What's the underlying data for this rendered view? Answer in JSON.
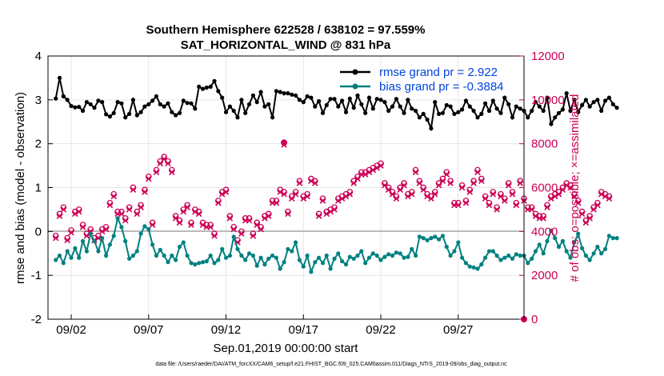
{
  "chart_data": {
    "type": "line",
    "title": "Southern Hemisphere 622528 / 638102 = 97.559%",
    "subtitle": "SAT_HORIZONTAL_WIND @ 831 hPa",
    "xlabel": "Sep.01,2019 00:00:00 start",
    "ylabel": "rmse and bias (model - observation)",
    "y2label": "# of obs: o=possible; ×=assimilated",
    "xlim": [
      0.5,
      31.25
    ],
    "ylim": [
      -2,
      4
    ],
    "y2lim": [
      0,
      12000
    ],
    "xticks": [
      {
        "x": 2,
        "label": "09/02"
      },
      {
        "x": 7,
        "label": "09/07"
      },
      {
        "x": 12,
        "label": "09/12"
      },
      {
        "x": 17,
        "label": "09/17"
      },
      {
        "x": 22,
        "label": "09/22"
      },
      {
        "x": 27,
        "label": "09/27"
      }
    ],
    "yticks": [
      "-2",
      "-1",
      "0",
      "1",
      "2",
      "3",
      "4"
    ],
    "y2ticks": [
      "0",
      "2000",
      "4000",
      "6000",
      "8000",
      "10000",
      "12000"
    ],
    "legend": [
      {
        "label": "rmse grand pr = 2.922",
        "color": "#000000"
      },
      {
        "label": "bias grand pr = -0.3884",
        "color": "#008080"
      }
    ],
    "footer": "data file: /Users/raeder/DAI/ATM_forcXX/CAM6_setup/f.e21.FHIST_BGC.f09_025.CAM6assim.011/Diags_NTrS_2019-09/obs_diag_output.nc",
    "x_start": 1.0,
    "x_step": 0.25,
    "series": [
      {
        "name": "rmse",
        "color": "#000000",
        "values": [
          3.03,
          3.5,
          3.08,
          3.0,
          2.86,
          2.83,
          2.84,
          2.75,
          2.95,
          2.9,
          2.82,
          2.98,
          2.95,
          2.67,
          2.62,
          2.7,
          2.95,
          2.92,
          2.6,
          2.68,
          3.0,
          2.65,
          2.72,
          2.85,
          2.9,
          2.98,
          3.08,
          2.9,
          2.85,
          2.92,
          2.72,
          2.65,
          2.7,
          2.98,
          2.93,
          2.92,
          2.8,
          3.3,
          3.25,
          3.28,
          3.3,
          3.43,
          3.2,
          3.05,
          2.72,
          2.85,
          2.75,
          2.6,
          3.0,
          2.7,
          2.9,
          3.1,
          2.95,
          3.18,
          2.85,
          2.9,
          2.6,
          3.2,
          3.18,
          3.15,
          3.15,
          3.12,
          3.1,
          3.0,
          2.95,
          3.08,
          3.05,
          2.85,
          2.97,
          2.7,
          2.88,
          3.02,
          3.02,
          2.85,
          2.98,
          2.72,
          3.03,
          2.82,
          3.1,
          2.9,
          2.7,
          3.05,
          2.8,
          3.02,
          3.0,
          2.95,
          2.75,
          2.85,
          3.02,
          2.85,
          2.7,
          3.0,
          2.8,
          2.75,
          2.6,
          2.68,
          2.55,
          2.35,
          2.95,
          2.68,
          2.7,
          2.88,
          2.85,
          2.68,
          2.72,
          2.78,
          2.98,
          2.85,
          2.75,
          2.6,
          2.68,
          2.92,
          2.75,
          2.98,
          2.8,
          2.7,
          3.05,
          2.9,
          2.6,
          2.85,
          2.8,
          2.75,
          2.6,
          2.75,
          2.95,
          2.85,
          2.75,
          3.05,
          2.45,
          2.6,
          2.7,
          2.78,
          3.15,
          2.75,
          3.0,
          2.72,
          2.88,
          3.0,
          2.85,
          2.95,
          3.0,
          2.75,
          2.98,
          3.05,
          2.9,
          2.82
        ]
      },
      {
        "name": "bias",
        "color": "#008080",
        "values": [
          -0.65,
          -0.55,
          -0.72,
          -0.45,
          -0.6,
          -0.38,
          -0.6,
          -0.22,
          -0.45,
          -0.05,
          -0.22,
          -0.45,
          -0.15,
          -0.55,
          -0.3,
          -0.1,
          0.3,
          0.1,
          -0.22,
          -0.62,
          -0.55,
          -0.45,
          -0.05,
          0.12,
          0.05,
          -0.3,
          -0.55,
          -0.42,
          -0.55,
          -0.7,
          -0.55,
          -0.65,
          -0.35,
          -0.25,
          -0.55,
          -0.72,
          -0.75,
          -0.72,
          -0.7,
          -0.68,
          -0.55,
          -0.72,
          -0.65,
          -0.4,
          -0.6,
          -0.55,
          -0.12,
          -0.4,
          -0.55,
          -0.65,
          -0.5,
          -0.55,
          -0.78,
          -0.6,
          -0.75,
          -0.62,
          -0.55,
          -0.6,
          -0.85,
          -0.7,
          -0.4,
          -0.45,
          -0.25,
          -0.65,
          -0.8,
          -0.55,
          -0.92,
          -0.7,
          -0.6,
          -0.72,
          -0.55,
          -0.85,
          -0.62,
          -0.5,
          -0.68,
          -0.75,
          -0.58,
          -0.62,
          -0.55,
          -0.45,
          -0.72,
          -0.6,
          -0.5,
          -0.55,
          -0.65,
          -0.58,
          -0.52,
          -0.55,
          -0.48,
          -0.5,
          -0.6,
          -0.58,
          -0.4,
          -0.55,
          -0.12,
          -0.15,
          -0.2,
          -0.15,
          -0.12,
          -0.18,
          -0.1,
          -0.35,
          -0.55,
          -0.45,
          -0.25,
          -0.6,
          -0.72,
          -0.8,
          -0.82,
          -0.85,
          -0.75,
          -0.6,
          -0.45,
          -0.45,
          -0.55,
          -0.65,
          -0.6,
          -0.55,
          -0.62,
          -0.52,
          -0.55,
          -0.55,
          -0.72,
          -0.62,
          -0.45,
          -0.3,
          -0.5,
          -0.22,
          0.02,
          -0.15,
          -0.35,
          -0.22,
          -0.45,
          -0.6,
          -0.25,
          -0.05,
          -0.38,
          -0.55,
          -0.65,
          -0.5,
          -0.35,
          -0.5,
          -0.4,
          -0.1,
          -0.15,
          -0.15
        ]
      },
      {
        "name": "obs possible",
        "axis": "right",
        "color": "#cc0055",
        "values": [
          3800,
          4800,
          5100,
          3700,
          4050,
          4900,
          5000,
          4300,
          3900,
          4100,
          3700,
          3800,
          4100,
          4200,
          5300,
          5700,
          4900,
          4900,
          4600,
          5100,
          6000,
          4900,
          5200,
          5900,
          6500,
          4400,
          6800,
          7200,
          7400,
          7200,
          6800,
          4700,
          4500,
          5000,
          5200,
          4400,
          5000,
          4900,
          4400,
          4300,
          4300,
          3900,
          5400,
          5800,
          5900,
          4700,
          4200,
          3600,
          4000,
          4600,
          4600,
          3900,
          4400,
          4200,
          4700,
          4800,
          5400,
          5400,
          5900,
          5800,
          4900,
          5600,
          5800,
          6300,
          5600,
          5700,
          6400,
          6300,
          4800,
          5500,
          4900,
          5000,
          5100,
          5500,
          5600,
          5700,
          5800,
          6300,
          6500,
          6700,
          6700,
          6800,
          6900,
          7000,
          7100,
          6200,
          6000,
          5800,
          5600,
          6000,
          6200,
          5700,
          5800,
          6800,
          6300,
          6000,
          5700,
          5600,
          5800,
          6200,
          6400,
          6700,
          6300,
          5300,
          5300,
          6100,
          5400,
          5900,
          6300,
          6800,
          6400,
          5600,
          5300,
          5800,
          5100,
          5700,
          5500,
          6200,
          5800,
          5300,
          6300,
          5500,
          5100,
          5100,
          4800,
          4700,
          4700,
          5200,
          5600,
          5700,
          5800,
          6000,
          6200,
          6100,
          5700,
          5400,
          4900,
          4500,
          4700,
          5100,
          5300,
          5800,
          5700,
          5600
        ]
      },
      {
        "name": "obs assimilated",
        "axis": "right",
        "color": "#cc0055",
        "values": [
          3700,
          4700,
          5000,
          3600,
          3950,
          4800,
          4900,
          4200,
          3800,
          4000,
          3600,
          3700,
          4000,
          4100,
          5200,
          5600,
          4800,
          4800,
          4500,
          5000,
          5900,
          4800,
          5100,
          5800,
          6400,
          4300,
          6700,
          7100,
          7300,
          7100,
          6700,
          4600,
          4400,
          4900,
          5100,
          4300,
          4900,
          4800,
          4300,
          4200,
          4200,
          3800,
          5300,
          5700,
          5800,
          4600,
          4100,
          3500,
          3900,
          4500,
          4500,
          3800,
          4300,
          4100,
          4600,
          4700,
          5300,
          5300,
          5800,
          5700,
          4800,
          5500,
          5700,
          6200,
          5500,
          5600,
          6300,
          6200,
          4700,
          5400,
          4800,
          4900,
          5000,
          5400,
          5500,
          5600,
          5700,
          6200,
          6400,
          6600,
          6600,
          6700,
          6800,
          6900,
          7000,
          6100,
          5900,
          5700,
          5500,
          5900,
          6100,
          5600,
          5700,
          6700,
          6200,
          5900,
          5600,
          5500,
          5700,
          6100,
          6300,
          6600,
          6200,
          5200,
          5200,
          6000,
          5300,
          5800,
          6200,
          6700,
          6300,
          5500,
          5200,
          5700,
          5000,
          5600,
          5400,
          6100,
          5700,
          5200,
          6200,
          5400,
          5000,
          5000,
          4700,
          4600,
          4600,
          5100,
          5500,
          5600,
          5700,
          5900,
          6100,
          6000,
          5600,
          5300,
          4800,
          4400,
          4600,
          5000,
          5200,
          5700,
          5600,
          5500
        ]
      }
    ],
    "extra_points": [
      {
        "series": "obs possible",
        "x": 15.75,
        "y": 8050
      },
      {
        "series": "obs assimilated",
        "x": 15.75,
        "y": 7950
      },
      {
        "series": "obs possible",
        "x": 31.25,
        "y": 0
      }
    ]
  }
}
